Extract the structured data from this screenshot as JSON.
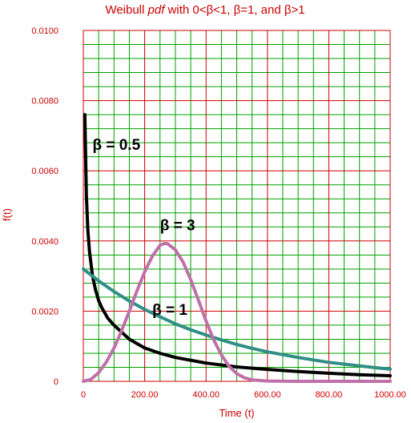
{
  "chart_data": {
    "type": "line",
    "title": {
      "prefix": "Weibull ",
      "italic": "pdf",
      "suffix": " with 0<β<1, β=1, and β>1"
    },
    "xlabel": "Time (t)",
    "ylabel": "f(t)",
    "xlim": [
      0,
      1000
    ],
    "ylim": [
      0,
      0.01
    ],
    "x_ticks": [
      {
        "value": 0,
        "label": "0"
      },
      {
        "value": 200,
        "label": "200.00"
      },
      {
        "value": 400,
        "label": "400.00"
      },
      {
        "value": 600,
        "label": "600.00"
      },
      {
        "value": 800,
        "label": "800.00"
      },
      {
        "value": 1000,
        "label": "1000.00"
      }
    ],
    "y_ticks": [
      {
        "value": 0,
        "label": "0"
      },
      {
        "value": 0.002,
        "label": "0.0020"
      },
      {
        "value": 0.004,
        "label": "0.0040"
      },
      {
        "value": 0.006,
        "label": "0.0060"
      },
      {
        "value": 0.008,
        "label": "0.0080"
      },
      {
        "value": 0.01,
        "label": "0.0100"
      }
    ],
    "grid": true,
    "colors": {
      "major_grid": "#cc0000",
      "minor_grid": "#00a000",
      "axis_text": "#cc0000"
    },
    "series": [
      {
        "name": "β = 0.5",
        "color": "#000000",
        "points": [
          [
            5,
            0.0076
          ],
          [
            10,
            0.0053
          ],
          [
            15,
            0.0043
          ],
          [
            20,
            0.0037
          ],
          [
            30,
            0.003
          ],
          [
            40,
            0.0026
          ],
          [
            50,
            0.0023
          ],
          [
            60,
            0.0021
          ],
          [
            80,
            0.0018
          ],
          [
            100,
            0.0016
          ],
          [
            150,
            0.0012
          ],
          [
            200,
            0.00095
          ],
          [
            250,
            0.0008
          ],
          [
            300,
            0.00068
          ],
          [
            400,
            0.00052
          ],
          [
            500,
            0.00041
          ],
          [
            600,
            0.00034
          ],
          [
            700,
            0.00028
          ],
          [
            800,
            0.00023
          ],
          [
            900,
            0.00019
          ],
          [
            1000,
            0.00016
          ]
        ]
      },
      {
        "name": "β = 1",
        "color": "#2f8f86",
        "points": [
          [
            0,
            0.0032
          ],
          [
            50,
            0.00286
          ],
          [
            100,
            0.00256
          ],
          [
            150,
            0.00229
          ],
          [
            200,
            0.00205
          ],
          [
            250,
            0.00184
          ],
          [
            300,
            0.00164
          ],
          [
            350,
            0.00147
          ],
          [
            400,
            0.00132
          ],
          [
            450,
            0.00118
          ],
          [
            500,
            0.00105
          ],
          [
            550,
            0.00094
          ],
          [
            600,
            0.00084
          ],
          [
            650,
            0.00076
          ],
          [
            700,
            0.00068
          ],
          [
            750,
            0.00061
          ],
          [
            800,
            0.00054
          ],
          [
            850,
            0.00049
          ],
          [
            900,
            0.00044
          ],
          [
            950,
            0.00039
          ],
          [
            1000,
            0.00035
          ]
        ]
      },
      {
        "name": "β = 3",
        "color": "#c070a8",
        "points": [
          [
            0,
            0
          ],
          [
            25,
            6e-05
          ],
          [
            50,
            0.00025
          ],
          [
            75,
            0.00055
          ],
          [
            100,
            0.00095
          ],
          [
            125,
            0.00145
          ],
          [
            150,
            0.002
          ],
          [
            175,
            0.00258
          ],
          [
            200,
            0.00312
          ],
          [
            225,
            0.00357
          ],
          [
            250,
            0.00388
          ],
          [
            265,
            0.00393
          ],
          [
            275,
            0.00392
          ],
          [
            300,
            0.00375
          ],
          [
            325,
            0.0034
          ],
          [
            350,
            0.0029
          ],
          [
            375,
            0.00232
          ],
          [
            400,
            0.00172
          ],
          [
            425,
            0.00118
          ],
          [
            450,
            0.00075
          ],
          [
            475,
            0.00043
          ],
          [
            500,
            0.00022
          ],
          [
            525,
            0.0001
          ],
          [
            550,
            4e-05
          ],
          [
            600,
            1e-05
          ],
          [
            700,
            0
          ],
          [
            800,
            0
          ],
          [
            900,
            0
          ],
          [
            1000,
            0
          ]
        ]
      }
    ],
    "annotations": [
      {
        "text": "β = 0.5",
        "x": 30,
        "y": 0.0066
      },
      {
        "text": "β = 3",
        "x": 250,
        "y": 0.0043
      },
      {
        "text": "β = 1",
        "x": 225,
        "y": 0.0019
      }
    ]
  }
}
